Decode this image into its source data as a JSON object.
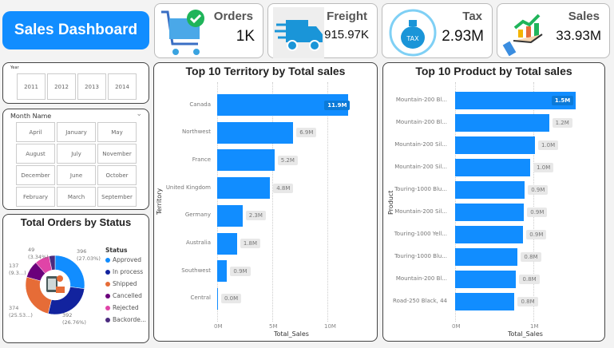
{
  "header": {
    "title": "Sales Dashboard"
  },
  "kpis": [
    {
      "label": "Orders",
      "value": "1K",
      "icon": "shopping-cart-check-icon"
    },
    {
      "label": "Freight",
      "value": "915.97K",
      "icon": "delivery-truck-icon"
    },
    {
      "label": "Tax",
      "value": "2.93M",
      "icon": "tax-bag-icon"
    },
    {
      "label": "Sales",
      "value": "33.93M",
      "icon": "hand-growth-chart-icon"
    }
  ],
  "year_slicer": {
    "title": "Year",
    "options": [
      "2011",
      "2012",
      "2013",
      "2014"
    ]
  },
  "month_slicer": {
    "title": "Month Name",
    "options": [
      "April",
      "January",
      "May",
      "August",
      "July",
      "November",
      "December",
      "June",
      "October",
      "February",
      "March",
      "September"
    ]
  },
  "colors": {
    "accent": "#118DFF",
    "approved": "#118DFF",
    "in_process": "#12239E",
    "shipped": "#E66C37",
    "cancelled": "#6B007B",
    "rejected": "#E044A7",
    "backordered": "#4B2B7F"
  },
  "chart_data": [
    {
      "type": "bar",
      "orientation": "horizontal",
      "title": "Top 10 Territory by Total sales",
      "xlabel": "Total_Sales",
      "ylabel": "Territory",
      "categories": [
        "Canada",
        "Northwest",
        "France",
        "United Kingdom",
        "Germany",
        "Australia",
        "Southwest",
        "Central"
      ],
      "values": [
        11.9,
        6.9,
        5.2,
        4.8,
        2.3,
        1.8,
        0.9,
        0.0
      ],
      "data_labels": [
        "11.9M",
        "6.9M",
        "5.2M",
        "4.8M",
        "2.3M",
        "1.8M",
        "0.9M",
        "0.0M"
      ],
      "xticks": [
        "0M",
        "5M",
        "10M"
      ],
      "xlim": [
        0,
        12
      ],
      "unit": "M",
      "grid": true
    },
    {
      "type": "bar",
      "orientation": "horizontal",
      "title": "Top 10 Product by Total sales",
      "xlabel": "Total_Sales",
      "ylabel": "Product",
      "categories": [
        "Mountain-200 Bl...",
        "Mountain-200 Bl...",
        "Mountain-200 Sil...",
        "Mountain-200 Sil...",
        "Touring-1000 Blu...",
        "Mountain-200 Sil...",
        "Touring-1000 Yell...",
        "Touring-1000 Blu...",
        "Mountain-200 Bl...",
        "Road-250 Black, 44"
      ],
      "values": [
        1.54,
        1.2,
        1.02,
        0.96,
        0.89,
        0.88,
        0.87,
        0.8,
        0.78,
        0.76
      ],
      "data_labels": [
        "1.5M",
        "1.2M",
        "1.0M",
        "1.0M",
        "0.9M",
        "0.9M",
        "0.9M",
        "0.8M",
        "0.8M",
        "0.8M"
      ],
      "xticks": [
        "0M",
        "1M"
      ],
      "xlim": [
        0,
        1.6
      ],
      "unit": "M",
      "grid": true
    },
    {
      "type": "pie",
      "donut": true,
      "title": "Total Orders by Status",
      "legend_title": "Status",
      "legend_position": "right",
      "categories": [
        "Approved",
        "In process",
        "Shipped",
        "Cancelled",
        "Rejected",
        "Backordered"
      ],
      "legend_labels": [
        "Approved",
        "In process",
        "Shipped",
        "Cancelled",
        "Rejected",
        "Backorde..."
      ],
      "values": [
        396,
        392,
        374,
        137,
        117,
        49
      ],
      "data_labels": [
        {
          "value": "396",
          "pct": "(27.03%)"
        },
        {
          "value": "392",
          "pct": "(26.76%)"
        },
        {
          "value": "374",
          "pct": "(25.53...)"
        },
        {
          "value": "137",
          "pct": "(9.3...)"
        },
        null,
        {
          "value": "49",
          "pct": "(3.34%)"
        }
      ]
    }
  ]
}
